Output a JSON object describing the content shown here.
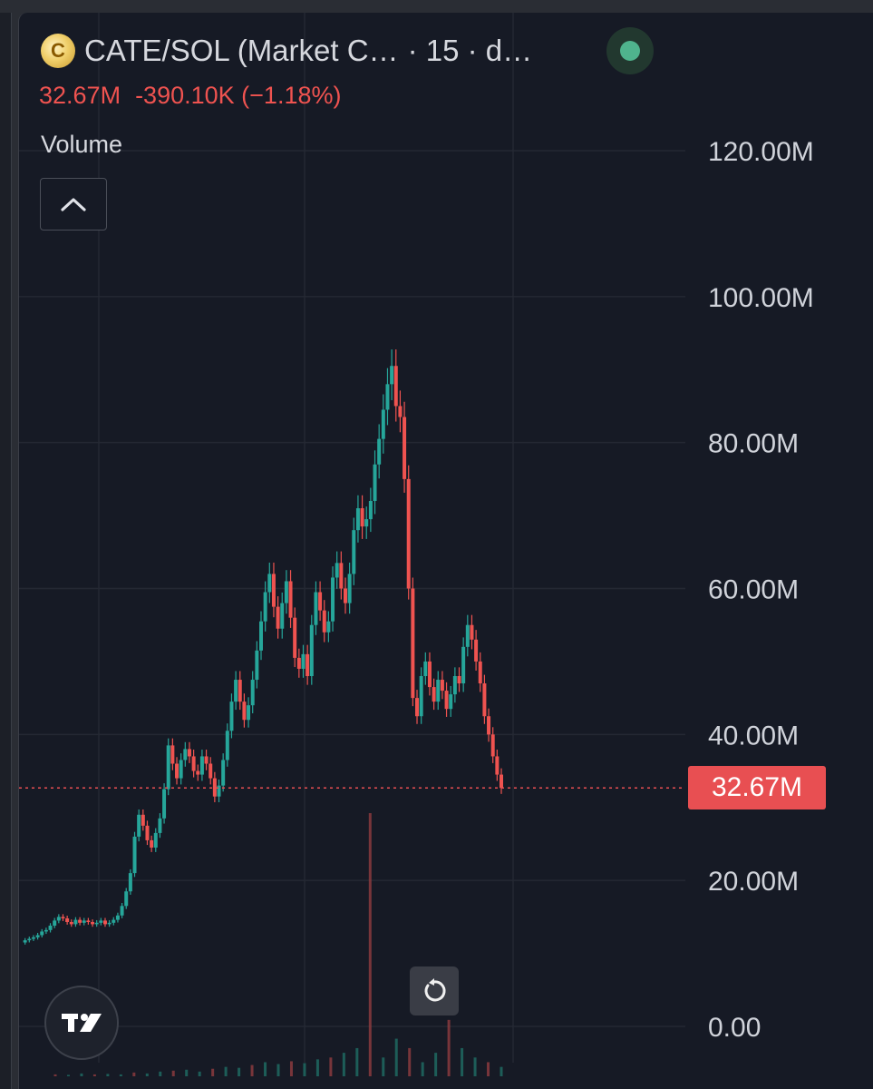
{
  "header": {
    "pair": "CATE/SOL (Market C…",
    "interval": "· 15 · d…",
    "logo_icon": "cate-coin-logo",
    "status_color": "#4fb38d"
  },
  "price_change": {
    "value": "32.67M",
    "change": "-390.10K",
    "percent": "(−1.18%)",
    "color": "#ef5350"
  },
  "volume_label": "Volume",
  "buttons": {
    "collapse_icon": "chevron-up-icon",
    "reset_icon": "reset-rotate-icon",
    "brand_icon": "tradingview-logo"
  },
  "chart_data": {
    "type": "line",
    "title": "",
    "xlabel": "",
    "ylabel": "",
    "ylim": [
      0,
      120000000
    ],
    "y_tick_labels": [
      "120.00M",
      "100.00M",
      "80.00M",
      "60.00M",
      "40.00M",
      "20.00M",
      "0.00"
    ],
    "y_ticks": [
      120000000,
      100000000,
      80000000,
      60000000,
      40000000,
      20000000,
      0
    ],
    "grid": true,
    "current_price": 32670000,
    "current_price_label": "32.67M",
    "series": [
      {
        "values": [
          11.5,
          11.8,
          12.0,
          12.2,
          12.5,
          13.0,
          13.2,
          13.8,
          14.5,
          15.0,
          14.8,
          14.3,
          14.0,
          14.6,
          14.2,
          14.5,
          14.3,
          14.0,
          14.2,
          14.5,
          14.0,
          14.2,
          14.6,
          15.2,
          16.5,
          18.5,
          21.0,
          26.0,
          29.0,
          27.5,
          25.5,
          24.5,
          26.5,
          28.5,
          32.5,
          38.5,
          36.0,
          34.0,
          36.5,
          38.0,
          37.0,
          35.0,
          34.5,
          37.0,
          36.0,
          34.0,
          31.5,
          33.0,
          36.5,
          40.5,
          44.5,
          47.5,
          44.5,
          42.0,
          44.0,
          47.5,
          51.5,
          55.5,
          59.5,
          62.0,
          57.5,
          54.5,
          58.0,
          61.0,
          56.0,
          50.5,
          49.0,
          51.0,
          48.0,
          55.0,
          59.5,
          57.0,
          54.0,
          55.5,
          61.5,
          63.5,
          60.0,
          58.0,
          62.0,
          68.0,
          71.0,
          68.5,
          69.5,
          72.0,
          77.0,
          80.5,
          84.5,
          88.0,
          90.5,
          85.0,
          83.5,
          75.0,
          60.0,
          45.0,
          42.5,
          48.0,
          50.0,
          46.5,
          44.5,
          47.5,
          46.0,
          43.5,
          45.5,
          48.0,
          47.0,
          52.0,
          55.0,
          53.0,
          50.0,
          47.0,
          42.5,
          40.0,
          37.0,
          34.5,
          32.67
        ]
      }
    ],
    "volume": {
      "values": [
        0.2,
        0.15,
        0.3,
        0.2,
        0.25,
        0.2,
        0.4,
        0.3,
        0.5,
        0.6,
        0.7,
        0.5,
        0.8,
        1.0,
        0.9,
        1.2,
        1.5,
        1.3,
        1.6,
        1.4,
        1.8,
        2.0,
        2.5,
        3.0,
        28.0,
        2.0,
        4.0,
        3.0,
        1.5,
        2.5,
        6.0,
        3.0,
        2.0,
        1.5,
        1.0
      ]
    }
  }
}
